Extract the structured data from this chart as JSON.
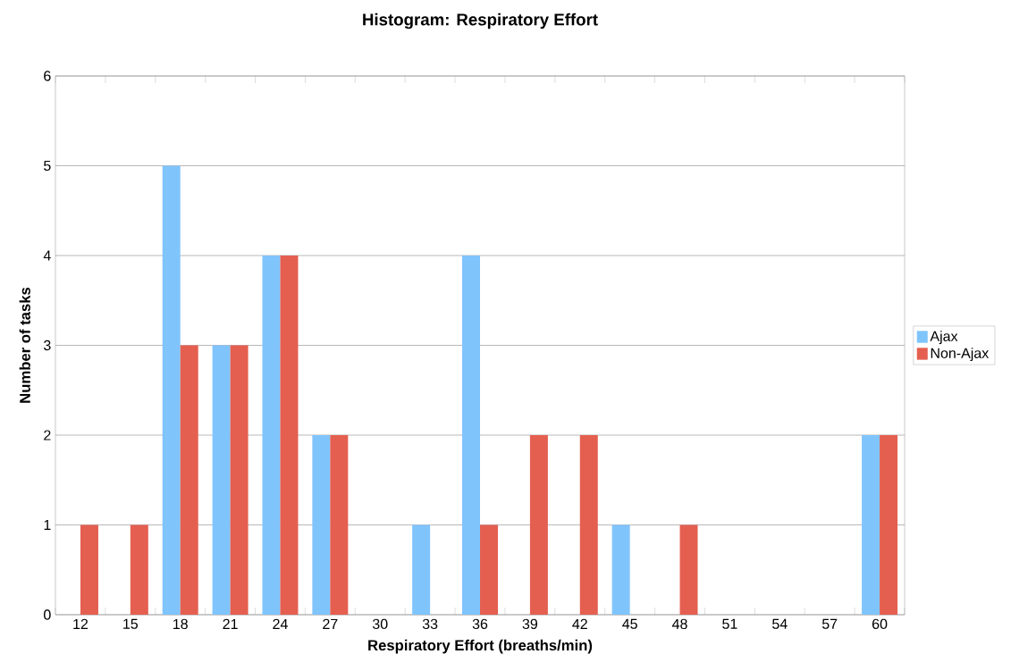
{
  "chart_data": {
    "type": "bar",
    "title": "Histogram: Respiratory Effort",
    "xlabel": "Respiratory Effort (breaths/min)",
    "ylabel": "Number of tasks",
    "categories": [
      "12",
      "15",
      "18",
      "21",
      "24",
      "27",
      "30",
      "33",
      "36",
      "39",
      "42",
      "45",
      "48",
      "51",
      "54",
      "57",
      "60"
    ],
    "series": [
      {
        "name": "Ajax",
        "color": "#80c4fc",
        "values": [
          0,
          0,
          5,
          3,
          4,
          2,
          0,
          1,
          4,
          0,
          0,
          1,
          0,
          0,
          0,
          0,
          2
        ]
      },
      {
        "name": "Non-Ajax",
        "color": "#e45f50",
        "values": [
          1,
          1,
          3,
          3,
          4,
          2,
          0,
          0,
          1,
          2,
          2,
          0,
          1,
          0,
          0,
          0,
          2
        ]
      }
    ],
    "ylim": [
      0,
      6
    ],
    "yticks": [
      0,
      1,
      2,
      3,
      4,
      5,
      6
    ],
    "grid": "y",
    "legend": "right"
  }
}
